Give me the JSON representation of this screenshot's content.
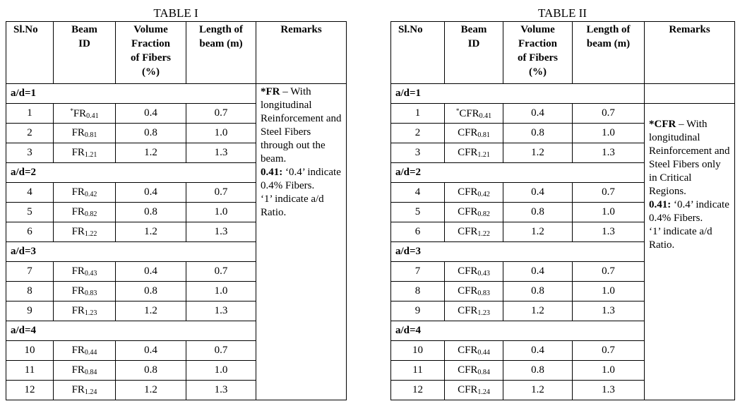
{
  "tables": [
    {
      "title": "TABLE I",
      "headers": [
        [
          "Sl.No"
        ],
        [
          "Beam",
          "ID"
        ],
        [
          "Volume",
          "Fraction",
          "of Fibers",
          "(%)"
        ],
        [
          "Length of",
          "beam (m)"
        ],
        [
          "Remarks"
        ]
      ],
      "groups": [
        {
          "label": "a/d=1",
          "rows": [
            {
              "sl": "1",
              "note": "*",
              "beam": "FR",
              "sub": "0.41",
              "vol": "0.4",
              "len": "0.7"
            },
            {
              "sl": "2",
              "beam": "FR",
              "sub": "0.81",
              "vol": "0.8",
              "len": "1.0"
            },
            {
              "sl": "3",
              "beam": "FR",
              "sub": "1.21",
              "vol": "1.2",
              "len": "1.3"
            }
          ]
        },
        {
          "label": "a/d=2",
          "rows": [
            {
              "sl": "4",
              "beam": "FR",
              "sub": "0.42",
              "vol": "0.4",
              "len": "0.7"
            },
            {
              "sl": "5",
              "beam": "FR",
              "sub": "0.82",
              "vol": "0.8",
              "len": "1.0"
            },
            {
              "sl": "6",
              "beam": "FR",
              "sub": "1.22",
              "vol": "1.2",
              "len": "1.3"
            }
          ]
        },
        {
          "label": "a/d=3",
          "rows": [
            {
              "sl": "7",
              "beam": "FR",
              "sub": "0.43",
              "vol": "0.4",
              "len": "0.7"
            },
            {
              "sl": "8",
              "beam": "FR",
              "sub": "0.83",
              "vol": "0.8",
              "len": "1.0"
            },
            {
              "sl": "9",
              "beam": "FR",
              "sub": "1.23",
              "vol": "1.2",
              "len": "1.3"
            }
          ]
        },
        {
          "label": "a/d=4",
          "rows": [
            {
              "sl": "10",
              "beam": "FR",
              "sub": "0.44",
              "vol": "0.4",
              "len": "0.7"
            },
            {
              "sl": "11",
              "beam": "FR",
              "sub": "0.84",
              "vol": "0.8",
              "len": "1.0"
            },
            {
              "sl": "12",
              "beam": "FR",
              "sub": "1.24",
              "vol": "1.2",
              "len": "1.3"
            }
          ]
        }
      ],
      "remarks": [
        {
          "bold": "*FR",
          "text": " – With longitudinal Reinforcement and Steel Fibers through out the beam."
        },
        {
          "bold": "0.41:",
          "text": " ‘0.4’ indicate 0.4% Fibers."
        },
        {
          "text": "‘1’ indicate a/d Ratio."
        }
      ]
    },
    {
      "title": "TABLE II",
      "headers": [
        [
          "Sl.No"
        ],
        [
          "Beam",
          "ID"
        ],
        [
          "Volume",
          "Fraction",
          "of Fibers",
          "(%)"
        ],
        [
          "Length of",
          "beam (m)"
        ],
        [
          "Remarks"
        ]
      ],
      "groups": [
        {
          "label": "a/d=1",
          "rows": [
            {
              "sl": "1",
              "note": "*",
              "beam": "CFR",
              "sub": "0.41",
              "vol": "0.4",
              "len": "0.7"
            },
            {
              "sl": "2",
              "beam": "CFR",
              "sub": "0.81",
              "vol": "0.8",
              "len": "1.0"
            },
            {
              "sl": "3",
              "beam": "CFR",
              "sub": "1.21",
              "vol": "1.2",
              "len": "1.3"
            }
          ]
        },
        {
          "label": "a/d=2",
          "rows": [
            {
              "sl": "4",
              "beam": "CFR",
              "sub": "0.42",
              "vol": "0.4",
              "len": "0.7"
            },
            {
              "sl": "5",
              "beam": "CFR",
              "sub": "0.82",
              "vol": "0.8",
              "len": "1.0"
            },
            {
              "sl": "6",
              "beam": "CFR",
              "sub": "1.22",
              "vol": "1.2",
              "len": "1.3"
            }
          ]
        },
        {
          "label": "a/d=3",
          "rows": [
            {
              "sl": "7",
              "beam": "CFR",
              "sub": "0.43",
              "vol": "0.4",
              "len": "0.7"
            },
            {
              "sl": "8",
              "beam": "CFR",
              "sub": "0.83",
              "vol": "0.8",
              "len": "1.0"
            },
            {
              "sl": "9",
              "beam": "CFR",
              "sub": "1.23",
              "vol": "1.2",
              "len": "1.3"
            }
          ]
        },
        {
          "label": "a/d=4",
          "rows": [
            {
              "sl": "10",
              "beam": "CFR",
              "sub": "0.44",
              "vol": "0.4",
              "len": "0.7"
            },
            {
              "sl": "11",
              "beam": "CFR",
              "sub": "0.84",
              "vol": "0.8",
              "len": "1.0"
            },
            {
              "sl": "12",
              "beam": "CFR",
              "sub": "1.24",
              "vol": "1.2",
              "len": "1.3"
            }
          ]
        }
      ],
      "remarks": [
        {
          "bold": "*CFR",
          "text": " – With longitudinal Reinforcement and Steel Fibers only in Critical Regions."
        },
        {
          "bold": "0.41:",
          "text": " ‘0.4’ indicate 0.4% Fibers."
        },
        {
          "text": "‘1’ indicate a/d Ratio."
        }
      ]
    }
  ]
}
